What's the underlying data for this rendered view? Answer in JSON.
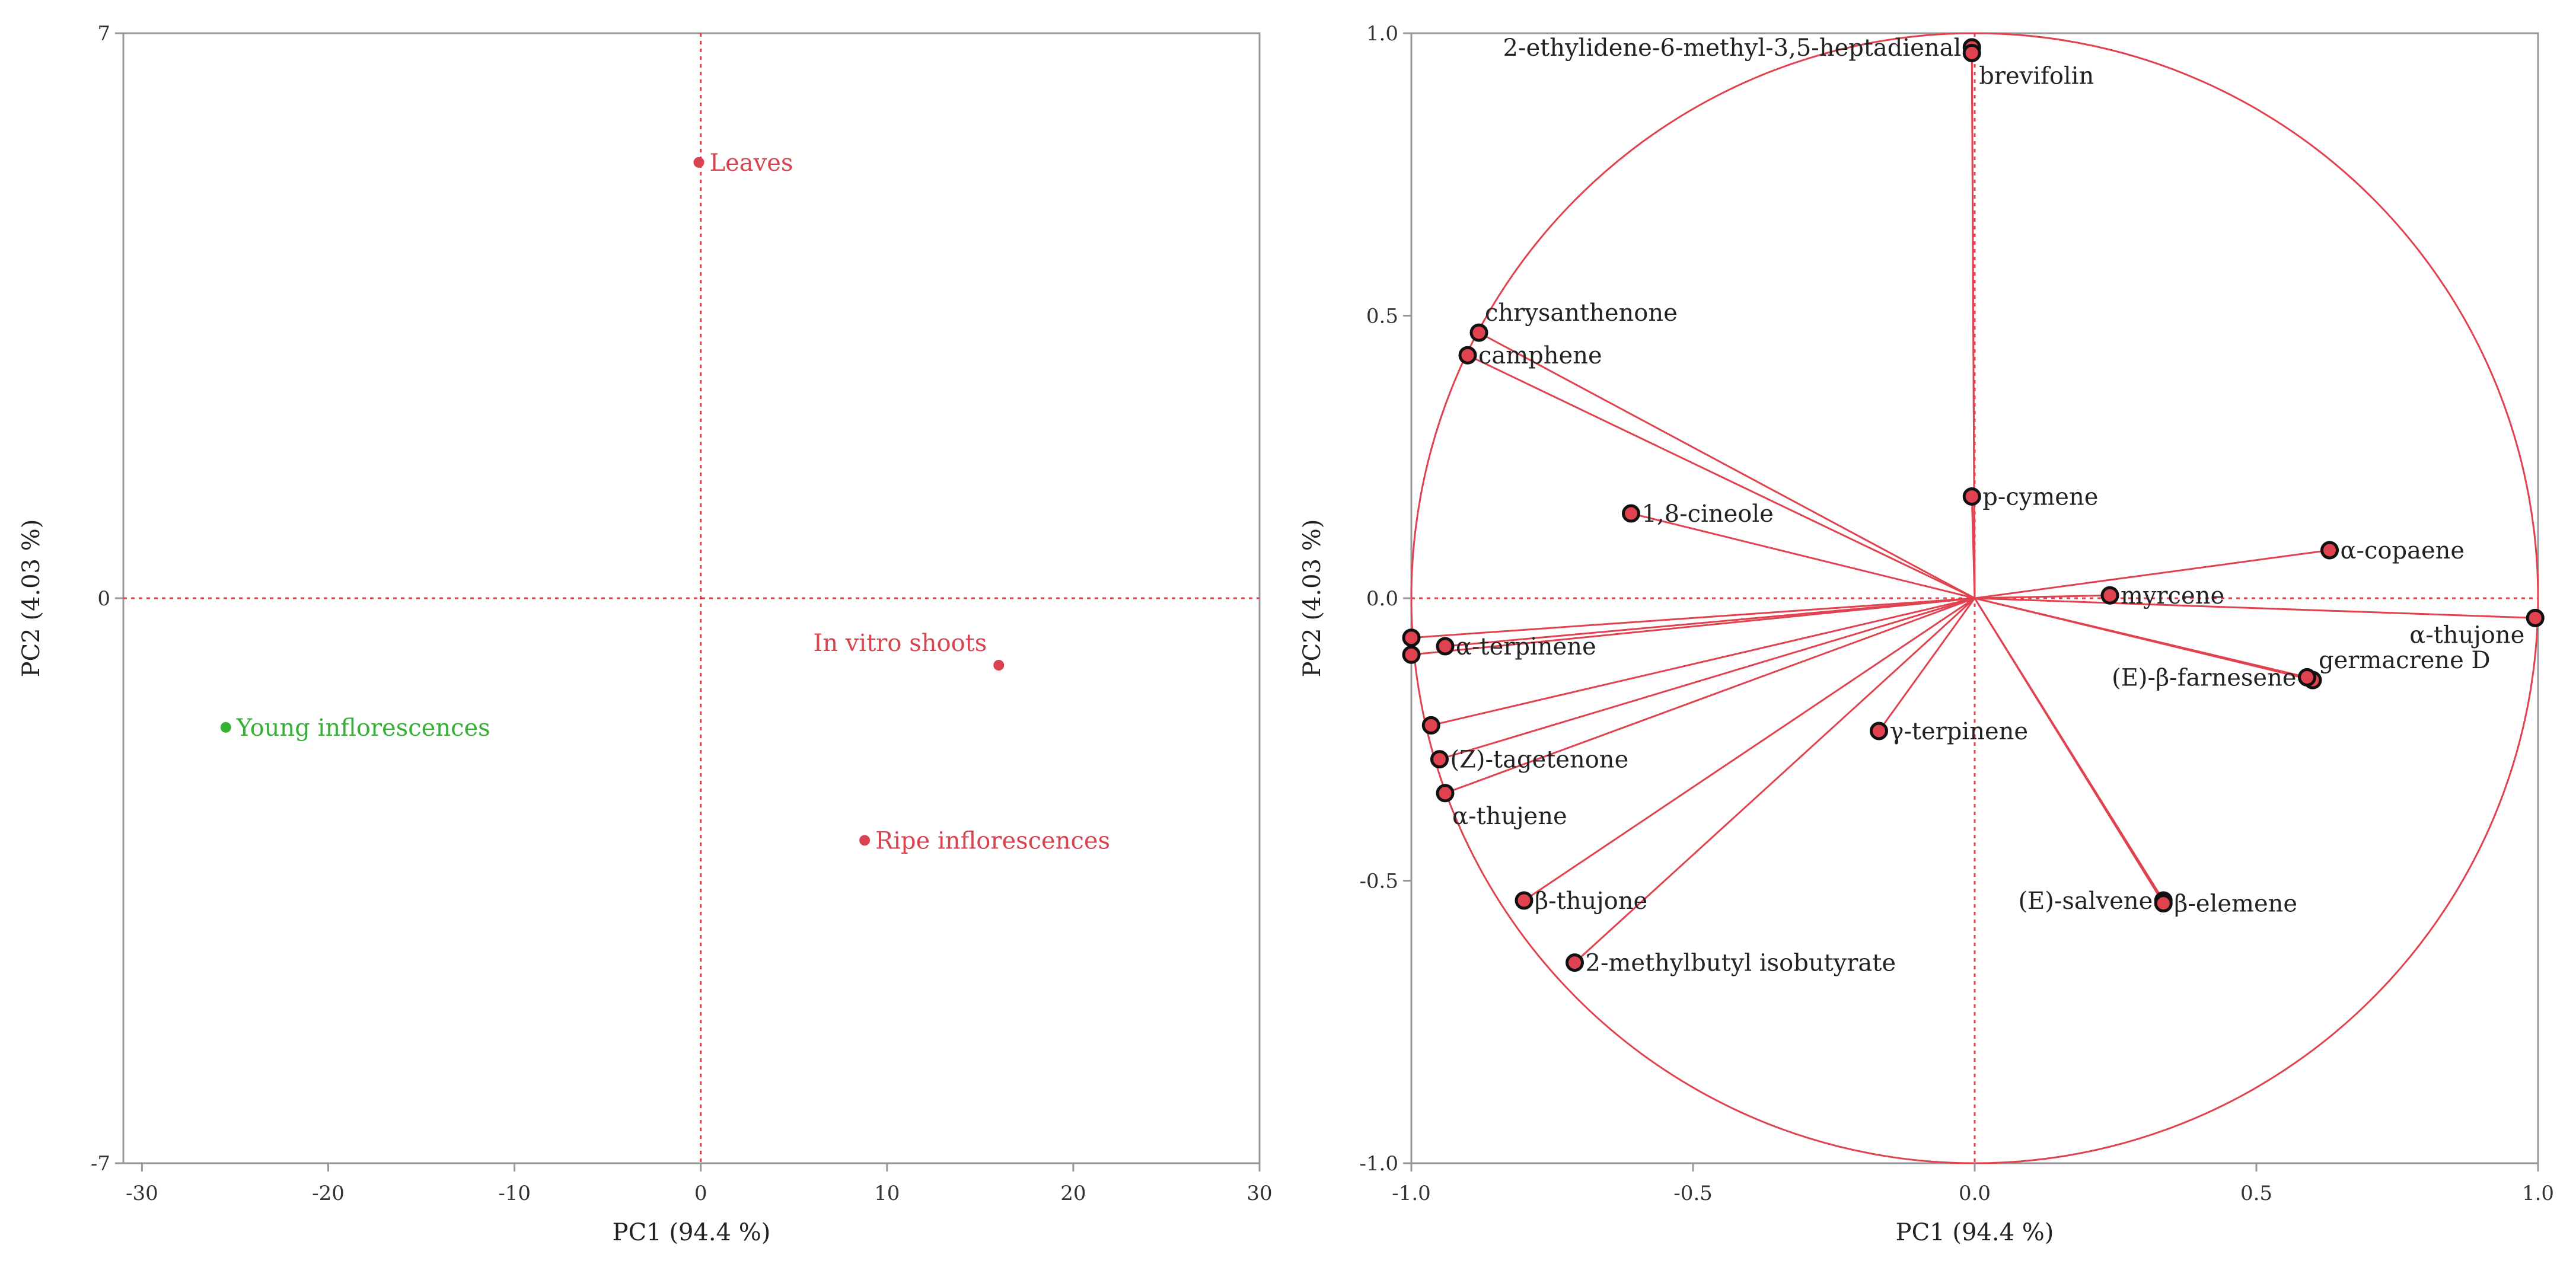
{
  "chart_data": [
    {
      "type": "scatter",
      "title": "",
      "xlabel": "PC1 (94.4 %)",
      "ylabel": "PC2 (4.03 %)",
      "xlim": [
        -31,
        30
      ],
      "ylim": [
        -7,
        7
      ],
      "xticks": [
        -30,
        -20,
        -10,
        0,
        10,
        20,
        30
      ],
      "xtick_labels": [
        "-30",
        "-20",
        "-10",
        "0",
        "10",
        "20",
        "30"
      ],
      "yticks": [
        7,
        0,
        -7
      ],
      "ytick_labels": [
        "7",
        "0",
        "-7"
      ],
      "grid": false,
      "reference_lines": {
        "x": 0,
        "y": 0,
        "style": "dotted"
      },
      "colors": {
        "main": "#d9434f",
        "young": "#35b035",
        "axis": "#999999"
      },
      "points": [
        {
          "name": "Leaves",
          "x": -0.1,
          "y": 5.4,
          "color": "#d9434f",
          "label_pos": "right"
        },
        {
          "name": "In vitro shoots",
          "x": 16.0,
          "y": -0.83,
          "color": "#d9434f",
          "label_pos": "above-left"
        },
        {
          "name": "Young inflorescences",
          "x": -25.5,
          "y": -1.6,
          "color": "#35b035",
          "label_pos": "right"
        },
        {
          "name": "Ripe inflorescences",
          "x": 8.8,
          "y": -3.0,
          "color": "#d9434f",
          "label_pos": "right"
        }
      ]
    },
    {
      "type": "scatter",
      "subtype": "correlation-circle",
      "title": "",
      "xlabel": "PC1 (94.4 %)",
      "ylabel": "PC2 (4.03 %)",
      "xlim": [
        -1.0,
        1.0
      ],
      "ylim": [
        -1.0,
        1.0
      ],
      "xticks": [
        -1.0,
        -0.5,
        0.0,
        0.5,
        1.0
      ],
      "xtick_labels": [
        "-1.0",
        "-0.5",
        "0.0",
        "0.5",
        "1.0"
      ],
      "yticks": [
        1.0,
        0.5,
        0.0,
        -0.5,
        -1.0
      ],
      "ytick_labels": [
        "1.0",
        "0.5",
        "0.0",
        "-0.5",
        "-1.0"
      ],
      "grid": false,
      "unit_circle": true,
      "reference_lines": {
        "x": 0,
        "y": 0,
        "style": "dotted"
      },
      "colors": {
        "vector": "#e0434f",
        "point": "#e0434f",
        "point_edge": "#111111"
      },
      "vectors": [
        {
          "name": "2-ethylidene-6-methyl-3,5-heptadienal",
          "x": -0.005,
          "y": 0.975,
          "label_pos": "left"
        },
        {
          "name": "brevifolin",
          "x": -0.005,
          "y": 0.965,
          "label_pos": "below-right"
        },
        {
          "name": "chrysanthenone",
          "x": -0.88,
          "y": 0.47,
          "label_pos": "above-right"
        },
        {
          "name": "camphene",
          "x": -0.9,
          "y": 0.43,
          "label_pos": "right"
        },
        {
          "name": "1,8-cineole",
          "x": -0.61,
          "y": 0.15,
          "label_pos": "right"
        },
        {
          "name": "p-cymene",
          "x": -0.005,
          "y": 0.18,
          "label_pos": "right"
        },
        {
          "name": "α-copaene",
          "x": 0.63,
          "y": 0.085,
          "label_pos": "right"
        },
        {
          "name": "myrcene",
          "x": 0.24,
          "y": 0.005,
          "label_pos": "right"
        },
        {
          "name": "α-thujone",
          "x": 0.995,
          "y": -0.035,
          "label_pos": "below-left"
        },
        {
          "name": "germacrene D",
          "x": 0.6,
          "y": -0.145,
          "label_pos": "above-right"
        },
        {
          "name": "(E)-β-farnesene",
          "x": 0.59,
          "y": -0.14,
          "label_pos": "left"
        },
        {
          "name": "α-terpinene",
          "x": -0.94,
          "y": -0.085,
          "label_pos": "right"
        },
        {
          "name": "",
          "x": -1.0,
          "y": -0.07,
          "label_pos": "none"
        },
        {
          "name": "",
          "x": -1.0,
          "y": -0.1,
          "label_pos": "none"
        },
        {
          "name": "",
          "x": -0.965,
          "y": -0.225,
          "label_pos": "none"
        },
        {
          "name": "(Z)-tagetenone",
          "x": -0.95,
          "y": -0.285,
          "label_pos": "right"
        },
        {
          "name": "α-thujene",
          "x": -0.94,
          "y": -0.345,
          "label_pos": "below-right"
        },
        {
          "name": "γ-terpinene",
          "x": -0.17,
          "y": -0.235,
          "label_pos": "right"
        },
        {
          "name": "β-thujone",
          "x": -0.8,
          "y": -0.535,
          "label_pos": "right"
        },
        {
          "name": "2-methylbutyl isobutyrate",
          "x": -0.71,
          "y": -0.645,
          "label_pos": "right"
        },
        {
          "name": "(E)-salvene",
          "x": 0.335,
          "y": -0.535,
          "label_pos": "left"
        },
        {
          "name": "β-elemene",
          "x": 0.335,
          "y": -0.54,
          "label_pos": "right"
        }
      ]
    }
  ]
}
